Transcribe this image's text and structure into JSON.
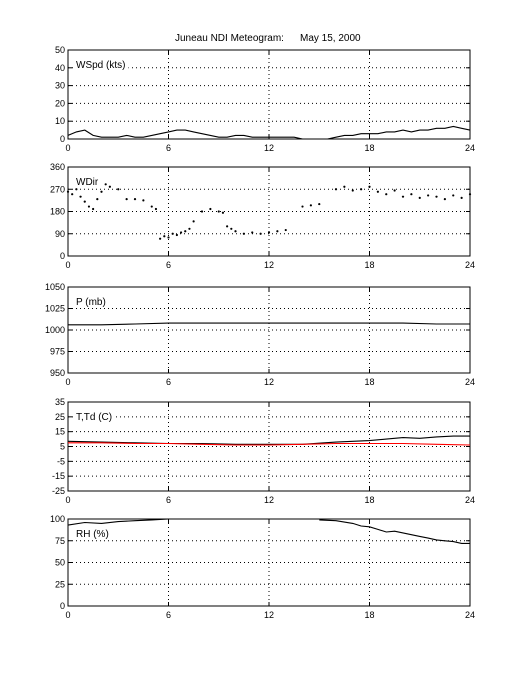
{
  "title": "Juneau NDI Meteogram:",
  "date": "May 15, 2000",
  "colors": {
    "black": "#000000",
    "red": "#ff0000",
    "grid": "#000000",
    "background": "#ffffff"
  },
  "chart_data": [
    {
      "type": "line",
      "label": "WSpd (kts)",
      "xlim": [
        0,
        24
      ],
      "xticks": [
        0,
        6,
        12,
        18,
        24
      ],
      "ylim": [
        0,
        50
      ],
      "yticks": [
        0,
        10,
        20,
        30,
        40,
        50
      ],
      "grid": true,
      "series": [
        {
          "color": "#000000",
          "x": [
            0,
            0.5,
            1,
            1.5,
            2,
            2.5,
            3,
            3.5,
            4,
            4.5,
            5,
            5.5,
            6,
            6.5,
            7,
            7.5,
            8,
            8.5,
            9,
            9.5,
            10,
            10.5,
            11,
            11.5,
            12,
            12.5,
            13,
            13.5,
            14,
            14.5,
            15,
            15.5,
            16,
            16.5,
            17,
            17.5,
            18,
            18.5,
            19,
            19.5,
            20,
            20.5,
            21,
            21.5,
            22,
            22.5,
            23,
            23.5,
            24
          ],
          "y": [
            2,
            4,
            5,
            2,
            1,
            1,
            1,
            2,
            1,
            1,
            2,
            3,
            4,
            5,
            5,
            4,
            3,
            2,
            1,
            1,
            2,
            2,
            1,
            1,
            1,
            1,
            1,
            1,
            0,
            0,
            0,
            0,
            1,
            2,
            2,
            3,
            3,
            3,
            4,
            4,
            5,
            4,
            5,
            5,
            6,
            6,
            7,
            6,
            5
          ]
        }
      ]
    },
    {
      "type": "scatter",
      "label": "WDir",
      "xlim": [
        0,
        24
      ],
      "xticks": [
        0,
        6,
        12,
        18,
        24
      ],
      "ylim": [
        0,
        360
      ],
      "yticks": [
        0,
        90,
        180,
        270,
        360
      ],
      "grid": true,
      "series": [
        {
          "color": "#000000",
          "x": [
            0,
            0.25,
            0.5,
            0.75,
            1,
            1.25,
            1.5,
            1.75,
            2,
            2.25,
            2.5,
            3,
            3.5,
            4,
            4.5,
            5,
            5.25,
            5.5,
            5.75,
            6,
            6.25,
            6.5,
            6.75,
            7,
            7.25,
            7.5,
            8,
            8.5,
            9,
            9.25,
            9.5,
            9.75,
            10,
            10.5,
            11,
            11.5,
            12,
            12.5,
            13,
            14,
            14.5,
            15,
            16,
            16.5,
            17,
            17.5,
            18,
            18.5,
            19,
            19.5,
            20,
            20.5,
            21,
            21.5,
            22,
            22.5,
            23,
            23.5,
            24
          ],
          "y": [
            260,
            250,
            270,
            240,
            220,
            200,
            190,
            230,
            260,
            290,
            280,
            270,
            230,
            230,
            225,
            200,
            190,
            70,
            80,
            75,
            90,
            85,
            95,
            100,
            110,
            140,
            180,
            190,
            180,
            175,
            120,
            110,
            100,
            90,
            95,
            90,
            95,
            100,
            105,
            200,
            205,
            210,
            270,
            280,
            265,
            270,
            280,
            260,
            250,
            265,
            240,
            250,
            235,
            245,
            240,
            230,
            245,
            235,
            250
          ]
        }
      ]
    },
    {
      "type": "line",
      "label": "P (mb)",
      "xlim": [
        0,
        24
      ],
      "xticks": [
        0,
        6,
        12,
        18,
        24
      ],
      "ylim": [
        950,
        1050
      ],
      "yticks": [
        950,
        975,
        1000,
        1025,
        1050
      ],
      "grid": true,
      "series": [
        {
          "color": "#000000",
          "x": [
            0,
            2,
            4,
            6,
            8,
            10,
            12,
            14,
            16,
            18,
            20,
            22,
            24
          ],
          "y": [
            1006,
            1006,
            1007,
            1008,
            1008,
            1008,
            1008,
            1008,
            1008,
            1008,
            1008,
            1007,
            1007
          ]
        }
      ]
    },
    {
      "type": "line",
      "label": "T,Td (C)",
      "xlim": [
        0,
        24
      ],
      "xticks": [
        0,
        6,
        12,
        18,
        24
      ],
      "ylim": [
        -25,
        35
      ],
      "yticks": [
        -25,
        -15,
        -5,
        5,
        15,
        25,
        35
      ],
      "grid": true,
      "series": [
        {
          "color": "#000000",
          "x": [
            0,
            2,
            4,
            6,
            8,
            10,
            12,
            14,
            16,
            17,
            18,
            19,
            20,
            21,
            22,
            23,
            24
          ],
          "y": [
            8.5,
            8,
            7.5,
            7,
            7,
            6.5,
            6.5,
            6.5,
            8,
            8.5,
            9,
            10,
            11,
            10.5,
            11.5,
            12,
            12
          ]
        },
        {
          "color": "#ff0000",
          "x": [
            0,
            2,
            4,
            6,
            8,
            10,
            12,
            14,
            16,
            18,
            20,
            22,
            24
          ],
          "y": [
            7.5,
            7.5,
            7,
            7,
            6.5,
            6,
            6,
            6.5,
            7,
            7,
            7,
            6.5,
            6
          ]
        }
      ]
    },
    {
      "type": "line",
      "label": "RH (%)",
      "xlim": [
        0,
        24
      ],
      "xticks": [
        0,
        6,
        12,
        18,
        24
      ],
      "ylim": [
        0,
        100
      ],
      "yticks": [
        0,
        25,
        50,
        75,
        100
      ],
      "grid": true,
      "series": [
        {
          "color": "#000000",
          "x": [
            0,
            1,
            2,
            3,
            4,
            5,
            6,
            null,
            15,
            16,
            17,
            17.5,
            18,
            18.5,
            19,
            19.5,
            20,
            20.5,
            21,
            21.5,
            22,
            22.5,
            23,
            23.5,
            24
          ],
          "y": [
            93,
            96,
            95,
            97,
            98,
            99,
            100,
            null,
            99,
            98,
            95,
            92,
            91,
            88,
            85,
            86,
            84,
            82,
            80,
            78,
            76,
            75,
            74,
            72,
            72
          ]
        }
      ]
    }
  ]
}
